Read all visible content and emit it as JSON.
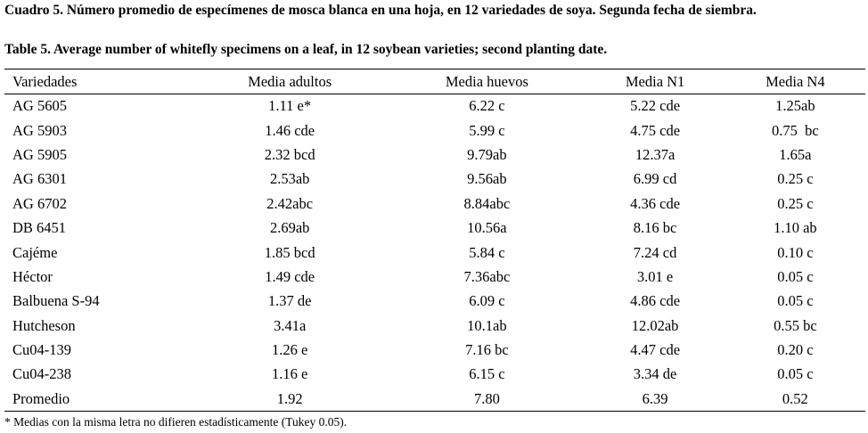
{
  "caption": {
    "es": "Cuadro 5. Número promedio de especímenes de mosca blanca en una hoja, en 12 variedades de soya. Segunda fecha de siembra.",
    "en": "Table 5. Average number of whitefly specimens on a leaf, in 12 soybean varieties; second planting date."
  },
  "table": {
    "header": [
      "Variedades",
      "Media adultos",
      "Media huevos",
      "Media N1",
      "Media N4"
    ],
    "rows": [
      [
        "AG 5605",
        "1.11 e*",
        "6.22 c",
        "5.22 cde",
        "1.25ab"
      ],
      [
        "AG 5903",
        "1.46 cde",
        "5.99 c",
        "4.75 cde",
        "0.75  bc"
      ],
      [
        "AG 5905",
        "2.32 bcd",
        "9.79ab",
        "12.37a",
        "1.65a"
      ],
      [
        "AG 6301",
        "2.53ab",
        "9.56ab",
        "6.99 cd",
        "0.25 c"
      ],
      [
        "AG 6702",
        "2.42abc",
        "8.84abc",
        "4.36 cde",
        "0.25 c"
      ],
      [
        "DB 6451",
        "2.69ab",
        "10.56a",
        "8.16 bc",
        "1.10 ab"
      ],
      [
        "Cajéme",
        "1.85 bcd",
        "5.84 c",
        "7.24 cd",
        "0.10 c"
      ],
      [
        "Héctor",
        "1.49 cde",
        "7.36abc",
        "3.01 e",
        "0.05 c"
      ],
      [
        "Balbuena S-94",
        "1.37 de",
        "6.09 c",
        "4.86 cde",
        "0.05 c"
      ],
      [
        "Hutcheson",
        "3.41a",
        "10.1ab",
        "12.02ab",
        "0.55 bc"
      ],
      [
        "Cu04-139",
        "1.26 e",
        "7.16 bc",
        "4.47 cde",
        "0.20 c"
      ],
      [
        "Cu04-238",
        "1.16 e",
        "6.15 c",
        "3.34 de",
        "0.05 c"
      ],
      [
        "Promedio",
        "1.92",
        "7.80",
        "6.39",
        "0.52"
      ]
    ]
  },
  "footnote": "* Medias con la misma letra no difieren estadísticamente (Tukey 0.05)."
}
